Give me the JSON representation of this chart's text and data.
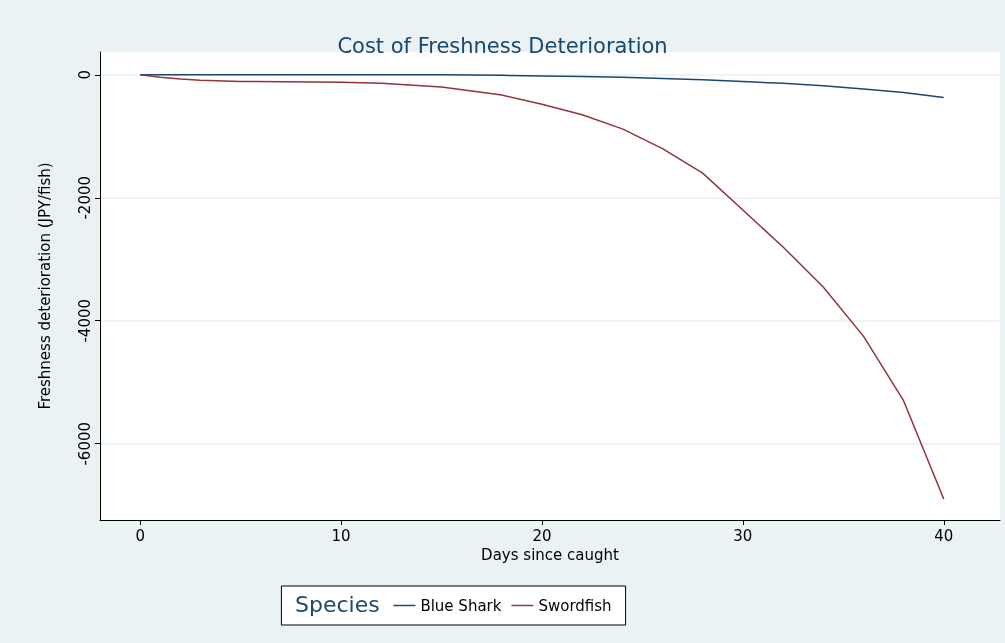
{
  "chart_data": {
    "type": "line",
    "title": "Cost of Freshness Deterioration",
    "xlabel": "Days since caught",
    "ylabel": "Freshness deterioration (JPY/fish)",
    "legend_title": "Species",
    "legend": "bottom",
    "grid": "y",
    "marker": "none",
    "line_style": "solid",
    "xlim": [
      -2,
      42.8
    ],
    "xticks": [
      0,
      10,
      20,
      30,
      40
    ],
    "ylim": [
      -7240,
      370
    ],
    "yticks": [
      -6000,
      -4000,
      -2000,
      0
    ],
    "x": [
      0,
      1,
      2,
      3,
      5,
      10,
      12,
      15,
      18,
      20,
      22,
      24,
      26,
      28,
      30,
      32,
      34,
      36,
      38,
      40
    ],
    "series": [
      {
        "name": "Blue Shark",
        "color": "#1a476f",
        "values": [
          0,
          0,
          0,
          0,
          0,
          0,
          0,
          0,
          -10,
          -20,
          -30,
          -40,
          -60,
          -80,
          -110,
          -140,
          -180,
          -230,
          -290,
          -370
        ]
      },
      {
        "name": "Swordfish",
        "color": "#90353b",
        "values": [
          0,
          -40,
          -70,
          -90,
          -110,
          -120,
          -140,
          -200,
          -330,
          -480,
          -650,
          -880,
          -1200,
          -1600,
          -2200,
          -2800,
          -3450,
          -4250,
          -5300,
          -6900
        ]
      }
    ]
  }
}
